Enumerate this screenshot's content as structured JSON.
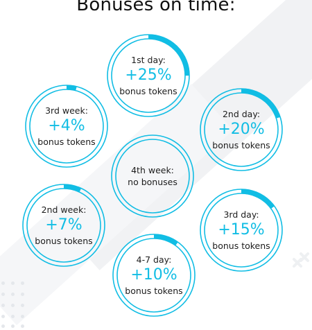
{
  "title": "Bonuses on time:",
  "colors": {
    "accent": "#11bde4",
    "ring_light": "#cdeff8",
    "text": "#1c1c1c"
  },
  "circles": [
    {
      "id": "day1",
      "label": "1st day:",
      "percent": "+25%",
      "sub": "bonus tokens",
      "progress": 0.25
    },
    {
      "id": "day2",
      "label": "2nd day:",
      "percent": "+20%",
      "sub": "bonus tokens",
      "progress": 0.2
    },
    {
      "id": "day3",
      "label": "3rd day:",
      "percent": "+15%",
      "sub": "bonus tokens",
      "progress": 0.15
    },
    {
      "id": "day47",
      "label": "4-7 day:",
      "percent": "+10%",
      "sub": "bonus tokens",
      "progress": 0.1
    },
    {
      "id": "week2",
      "label": "2nd week:",
      "percent": "+7%",
      "sub": "bonus tokens",
      "progress": 0.07
    },
    {
      "id": "week3",
      "label": "3rd week:",
      "percent": "+4%",
      "sub": "bonus tokens",
      "progress": 0.04
    },
    {
      "id": "week4",
      "label": "4th week:",
      "percent": "",
      "sub": "no bonuses",
      "progress": 0
    }
  ]
}
